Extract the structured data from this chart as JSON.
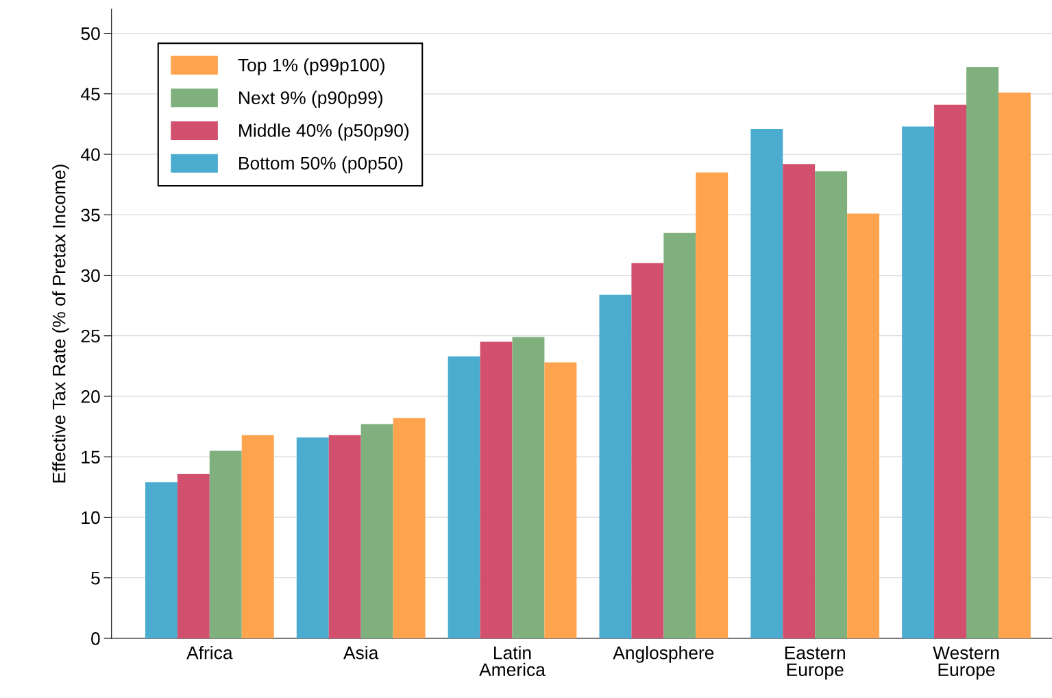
{
  "chart_data": {
    "type": "bar",
    "ylabel": "Effective Tax Rate (% of Pretax Income)",
    "categories": [
      "Africa",
      "Asia",
      "Latin\nAmerica",
      "Anglosphere",
      "Eastern\nEurope",
      "Western\nEurope"
    ],
    "series": [
      {
        "name": "Bottom 50% (p0p50)",
        "color": "#4bacd0",
        "values": [
          12.9,
          16.6,
          23.3,
          28.4,
          42.1,
          42.3
        ]
      },
      {
        "name": "Middle 40% (p50p90)",
        "color": "#d2506e",
        "values": [
          13.6,
          16.8,
          24.5,
          31.0,
          39.2,
          44.1
        ]
      },
      {
        "name": "Next 9% (p90p99)",
        "color": "#80b07e",
        "values": [
          15.5,
          17.7,
          24.9,
          33.5,
          38.6,
          47.2
        ]
      },
      {
        "name": "Top 1% (p99p100)",
        "color": "#fea44e",
        "values": [
          16.8,
          18.2,
          22.8,
          38.5,
          35.1,
          45.1
        ]
      }
    ],
    "ylim": [
      0,
      52
    ],
    "yticks": [
      0,
      5,
      10,
      15,
      20,
      25,
      30,
      35,
      40,
      45,
      50
    ],
    "grid": "y",
    "legend": "top left"
  }
}
